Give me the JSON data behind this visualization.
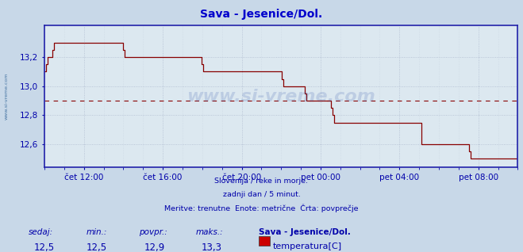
{
  "title": "Sava - Jesenice/Dol.",
  "title_color": "#0000cc",
  "bg_color": "#c8d8e8",
  "plot_bg_color": "#dce8f0",
  "grid_color_major": "#b0bcd0",
  "grid_color_minor": "#c8d4e0",
  "line_color": "#880000",
  "avg_line_color": "#880000",
  "avg_value": 12.9,
  "ylim": [
    12.44,
    13.42
  ],
  "yticks": [
    12.6,
    12.8,
    13.0,
    13.2
  ],
  "ylabel_color": "#0000aa",
  "axis_color": "#2222aa",
  "xlabel_color": "#0000aa",
  "footer_color": "#0000aa",
  "footer_lines": [
    "Slovenija / reke in morje.",
    "zadnji dan / 5 minut.",
    "Meritve: trenutne  Enote: metrične  Črta: povprečje"
  ],
  "stats": {
    "sedaj": "12,5",
    "min": "12,5",
    "povpr": "12,9",
    "maks": "13,3"
  },
  "legend_series": "temperatura[C]",
  "legend_color": "#cc0000",
  "xtick_labels": [
    "čet 12:00",
    "čet 16:00",
    "čet 20:00",
    "pet 00:00",
    "pet 04:00",
    "pet 08:00"
  ],
  "xtick_positions": [
    120,
    360,
    600,
    840,
    1080,
    1320
  ],
  "data_y": [
    13.1,
    13.15,
    13.2,
    13.2,
    13.2,
    13.25,
    13.3,
    13.3,
    13.3,
    13.3,
    13.3,
    13.3,
    13.3,
    13.3,
    13.3,
    13.3,
    13.3,
    13.3,
    13.3,
    13.3,
    13.3,
    13.3,
    13.3,
    13.3,
    13.3,
    13.3,
    13.3,
    13.3,
    13.3,
    13.3,
    13.3,
    13.3,
    13.3,
    13.3,
    13.3,
    13.3,
    13.3,
    13.3,
    13.3,
    13.3,
    13.3,
    13.3,
    13.3,
    13.3,
    13.3,
    13.3,
    13.3,
    13.3,
    13.25,
    13.2,
    13.2,
    13.2,
    13.2,
    13.2,
    13.2,
    13.2,
    13.2,
    13.2,
    13.2,
    13.2,
    13.2,
    13.2,
    13.2,
    13.2,
    13.2,
    13.2,
    13.2,
    13.2,
    13.2,
    13.2,
    13.2,
    13.2,
    13.2,
    13.2,
    13.2,
    13.2,
    13.2,
    13.2,
    13.2,
    13.2,
    13.2,
    13.2,
    13.2,
    13.2,
    13.2,
    13.2,
    13.2,
    13.2,
    13.2,
    13.2,
    13.2,
    13.2,
    13.2,
    13.2,
    13.2,
    13.2,
    13.15,
    13.1,
    13.1,
    13.1,
    13.1,
    13.1,
    13.1,
    13.1,
    13.1,
    13.1,
    13.1,
    13.1,
    13.1,
    13.1,
    13.1,
    13.1,
    13.1,
    13.1,
    13.1,
    13.1,
    13.1,
    13.1,
    13.1,
    13.1,
    13.1,
    13.1,
    13.1,
    13.1,
    13.1,
    13.1,
    13.1,
    13.1,
    13.1,
    13.1,
    13.1,
    13.1,
    13.1,
    13.1,
    13.1,
    13.1,
    13.1,
    13.1,
    13.1,
    13.1,
    13.1,
    13.1,
    13.1,
    13.1,
    13.1,
    13.05,
    13.0,
    13.0,
    13.0,
    13.0,
    13.0,
    13.0,
    13.0,
    13.0,
    13.0,
    13.0,
    13.0,
    13.0,
    13.0,
    12.95,
    12.9,
    12.9,
    12.9,
    12.9,
    12.9,
    12.9,
    12.9,
    12.9,
    12.9,
    12.9,
    12.9,
    12.9,
    12.9,
    12.9,
    12.9,
    12.85,
    12.8,
    12.75,
    12.75,
    12.75,
    12.75,
    12.75,
    12.75,
    12.75,
    12.75,
    12.75,
    12.75,
    12.75,
    12.75,
    12.75,
    12.75,
    12.75,
    12.75,
    12.75,
    12.75,
    12.75,
    12.75,
    12.75,
    12.75,
    12.75,
    12.75,
    12.75,
    12.75,
    12.75,
    12.75,
    12.75,
    12.75,
    12.75,
    12.75,
    12.75,
    12.75,
    12.75,
    12.75,
    12.75,
    12.75,
    12.75,
    12.75,
    12.75,
    12.75,
    12.75,
    12.75,
    12.75,
    12.75,
    12.75,
    12.75,
    12.75,
    12.75,
    12.75,
    12.75,
    12.75,
    12.6,
    12.6,
    12.6,
    12.6,
    12.6,
    12.6,
    12.6,
    12.6,
    12.6,
    12.6,
    12.6,
    12.6,
    12.6,
    12.6,
    12.6,
    12.6,
    12.6,
    12.6,
    12.6,
    12.6,
    12.6,
    12.6,
    12.6,
    12.6,
    12.6,
    12.6,
    12.6,
    12.6,
    12.6,
    12.55,
    12.5,
    12.5,
    12.5,
    12.5,
    12.5,
    12.5,
    12.5,
    12.5,
    12.5,
    12.5,
    12.5,
    12.5,
    12.5,
    12.5,
    12.5,
    12.5,
    12.5,
    12.5,
    12.5,
    12.5,
    12.5,
    12.5,
    12.5,
    12.5,
    12.5,
    12.5,
    12.5,
    12.5,
    12.5,
    12.5
  ]
}
